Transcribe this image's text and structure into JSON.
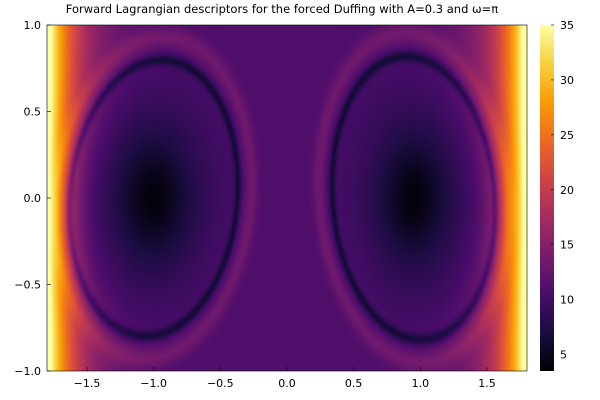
{
  "chart_data": {
    "type": "heatmap",
    "title": "Forward Lagrangian descriptors for the forced Duffing with A=0.3 and ω=π",
    "xlabel": "",
    "ylabel": "",
    "xlim": [
      -1.8,
      1.8
    ],
    "ylim": [
      -1.0,
      1.0
    ],
    "x_ticks": [
      -1.5,
      -1.0,
      -0.5,
      0.0,
      0.5,
      1.0,
      1.5
    ],
    "x_tick_labels": [
      "−1.5",
      "−1.0",
      "−0.5",
      "0.0",
      "0.5",
      "1.0",
      "1.5"
    ],
    "y_ticks": [
      -1.0,
      -0.5,
      0.0,
      0.5,
      1.0
    ],
    "y_tick_labels": [
      "−1.0",
      "−0.5",
      "0.0",
      "0.5",
      "1.0"
    ],
    "colorbar": {
      "colormap": "inferno",
      "range": [
        3.5,
        35
      ],
      "ticks": [
        5,
        10,
        15,
        20,
        25,
        30,
        35
      ],
      "tick_labels": [
        "5",
        "10",
        "15",
        "20",
        "25",
        "30",
        "35"
      ]
    },
    "features": {
      "minima_centers": [
        [
          -1.0,
          0.0
        ],
        [
          0.95,
          0.0
        ]
      ],
      "minimum_value": 3.5,
      "interior_lobe_value": 7,
      "outer_band_value": 11,
      "edge_max_value": 35
    },
    "grid": false,
    "colors": {
      "inferno_stops": [
        "#000004",
        "#1b0c41",
        "#4a0c6b",
        "#781c6d",
        "#a52c60",
        "#cf4446",
        "#ed6925",
        "#fb9b06",
        "#f7d13d",
        "#fcffa4"
      ]
    }
  }
}
